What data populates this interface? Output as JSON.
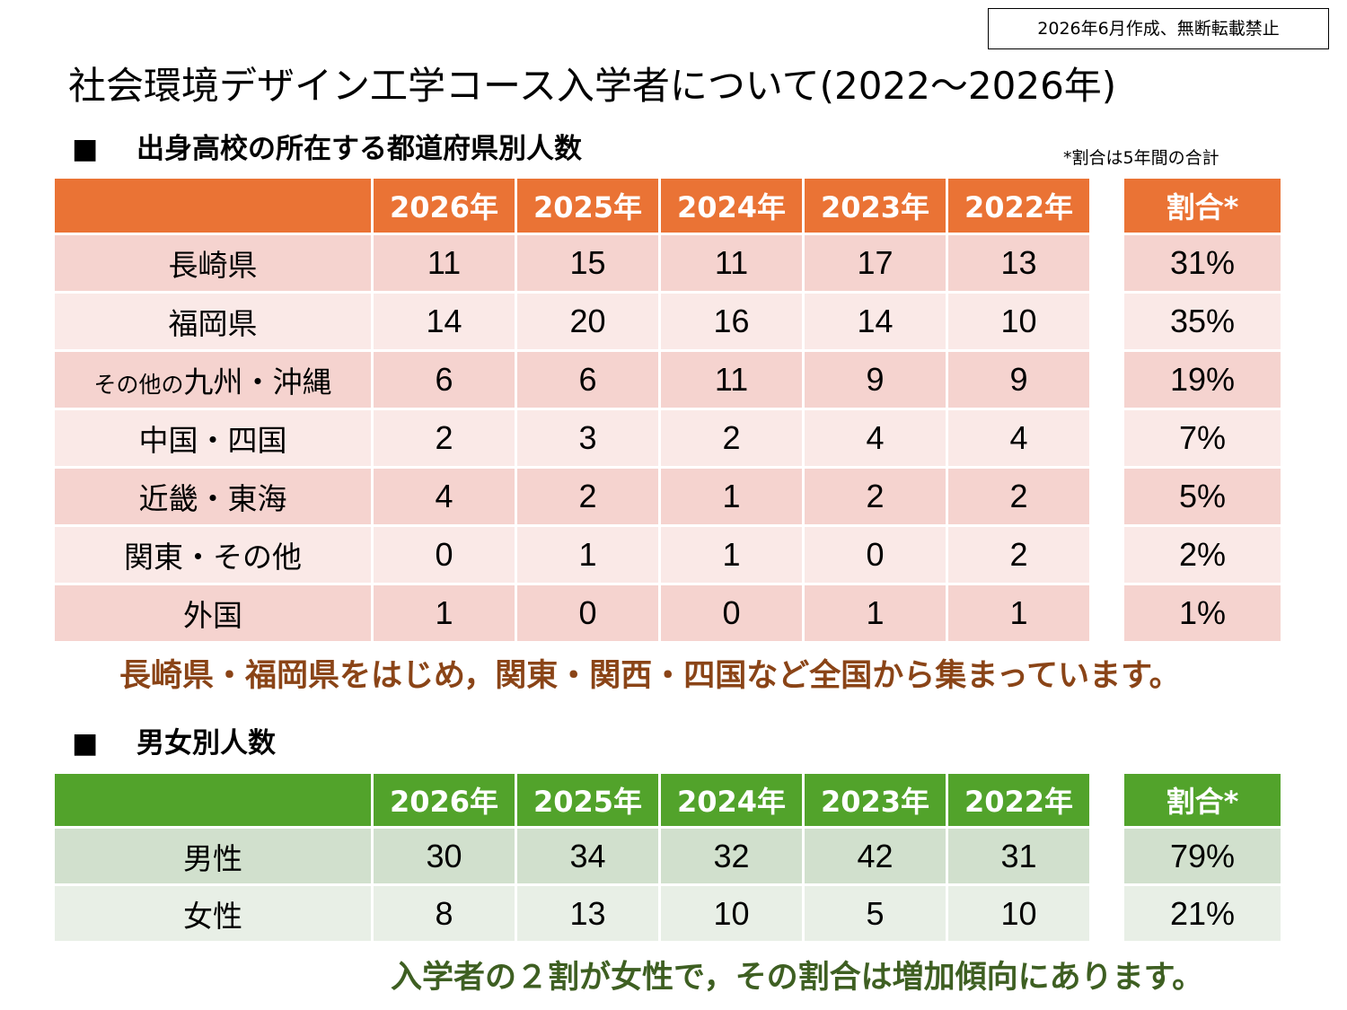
{
  "notice": "2026年6月作成、無断転載禁止",
  "title": "社会環境デザイン工学コース入学者について(2022～2026年)",
  "section1": {
    "mark": "■",
    "title": "出身高校の所在する都道府県別人数"
  },
  "ratio_note": "*割合は5年間の合計",
  "years": [
    "2026年",
    "2025年",
    "2024年",
    "2023年",
    "2022年"
  ],
  "ratio_header": "割合*",
  "prefecture_table": {
    "header_color": "#ea7335",
    "rows": [
      {
        "label": "長崎県",
        "values": [
          "11",
          "15",
          "11",
          "17",
          "13"
        ],
        "ratio": "31%"
      },
      {
        "label": "福岡県",
        "values": [
          "14",
          "20",
          "16",
          "14",
          "10"
        ],
        "ratio": "35%"
      },
      {
        "label_small": "その他の",
        "label_main": "九州・沖縄",
        "values": [
          "6",
          "6",
          "11",
          "9",
          "9"
        ],
        "ratio": "19%"
      },
      {
        "label": "中国・四国",
        "values": [
          "2",
          "3",
          "2",
          "4",
          "4"
        ],
        "ratio": "7%"
      },
      {
        "label": "近畿・東海",
        "values": [
          "4",
          "2",
          "1",
          "2",
          "2"
        ],
        "ratio": "5%"
      },
      {
        "label": "関東・その他",
        "values": [
          "0",
          "1",
          "1",
          "0",
          "2"
        ],
        "ratio": "2%"
      },
      {
        "label": "外国",
        "values": [
          "1",
          "0",
          "0",
          "1",
          "1"
        ],
        "ratio": "1%"
      }
    ]
  },
  "prefecture_summary": "長崎県・福岡県をはじめ，関東・関西・四国など全国から集まっています。",
  "section2": {
    "mark": "■",
    "title": "男女別人数"
  },
  "gender_table": {
    "header_color": "#52a32b",
    "rows": [
      {
        "label": "男性",
        "values": [
          "30",
          "34",
          "32",
          "42",
          "31"
        ],
        "ratio": "79%"
      },
      {
        "label": "女性",
        "values": [
          "8",
          "13",
          "10",
          "5",
          "10"
        ],
        "ratio": "21%"
      }
    ]
  },
  "gender_summary": "入学者の２割が女性で，その割合は増加傾向にあります。"
}
